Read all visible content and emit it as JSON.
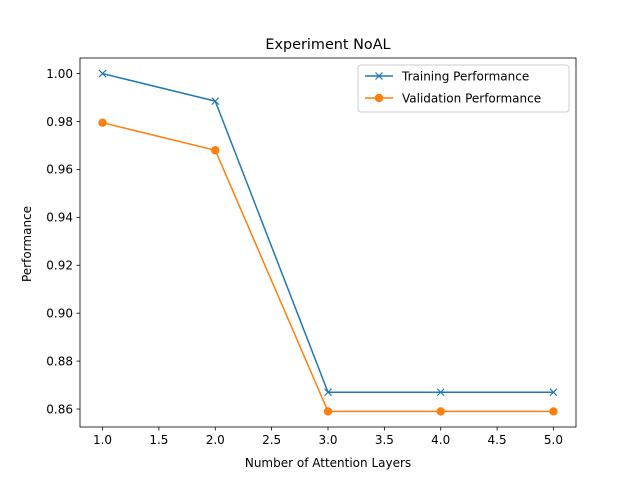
{
  "chart_data": {
    "type": "line",
    "title": "Experiment NoAL",
    "xlabel": "Number of Attention Layers",
    "ylabel": "Performance",
    "xlim": [
      0.8,
      5.2
    ],
    "ylim": [
      0.8525,
      1.0065
    ],
    "x_ticks": [
      1.0,
      1.5,
      2.0,
      2.5,
      3.0,
      3.5,
      4.0,
      4.5,
      5.0
    ],
    "x_tick_labels": [
      "1.0",
      "1.5",
      "2.0",
      "2.5",
      "3.0",
      "3.5",
      "4.0",
      "4.5",
      "5.0"
    ],
    "y_ticks": [
      0.86,
      0.88,
      0.9,
      0.92,
      0.94,
      0.96,
      0.98,
      1.0
    ],
    "y_tick_labels": [
      "0.86",
      "0.88",
      "0.90",
      "0.92",
      "0.94",
      "0.96",
      "0.98",
      "1.00"
    ],
    "grid": false,
    "legend_position": "top-right",
    "x": [
      1.0,
      2.0,
      3.0,
      4.0,
      5.0
    ],
    "series": [
      {
        "name": "Training Performance",
        "values": [
          1.0,
          0.9885,
          0.867,
          0.867,
          0.867
        ],
        "color": "#1f77b4",
        "marker": "x"
      },
      {
        "name": "Validation Performance",
        "values": [
          0.9795,
          0.968,
          0.859,
          0.859,
          0.859
        ],
        "color": "#ff7f0e",
        "marker": "circle"
      }
    ]
  }
}
